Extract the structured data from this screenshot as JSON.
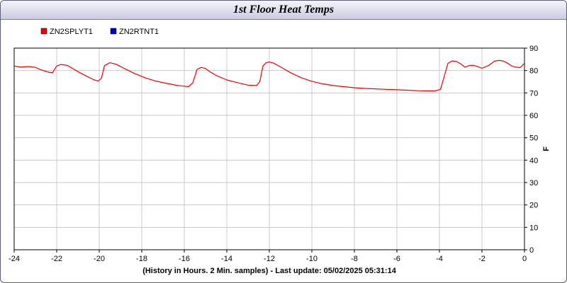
{
  "chart_data": {
    "type": "line",
    "title": "1st Floor Heat Temps",
    "xlabel": "(History in Hours. 2 Min. samples) - Last update: 05/02/2025 05:31:14",
    "ylabel": "F",
    "xlim": [
      -24,
      0
    ],
    "ylim": [
      0,
      90
    ],
    "x_ticks": [
      -24,
      -22,
      -20,
      -18,
      -16,
      -14,
      -12,
      -10,
      -8,
      -6,
      -4,
      -2,
      0
    ],
    "y_ticks": [
      0,
      10,
      20,
      30,
      40,
      50,
      60,
      70,
      80,
      90
    ],
    "grid": true,
    "legend_position": "top-left",
    "series": [
      {
        "name": "ZN2SPLYT1",
        "color": "#ee0000",
        "x": [
          -24,
          -23.7,
          -23.3,
          -23,
          -22.8,
          -22.4,
          -22.2,
          -22.0,
          -21.8,
          -21.5,
          -21,
          -20.5,
          -20.2,
          -20.05,
          -19.9,
          -19.75,
          -19.5,
          -19.2,
          -18.8,
          -18.3,
          -17.8,
          -17.3,
          -16.8,
          -16.3,
          -16.0,
          -15.8,
          -15.6,
          -15.4,
          -15.2,
          -15.0,
          -14.8,
          -14.5,
          -14.0,
          -13.5,
          -13.0,
          -12.6,
          -12.45,
          -12.3,
          -12.15,
          -12.0,
          -11.8,
          -11.5,
          -11.0,
          -10.5,
          -10.0,
          -9.5,
          -9.0,
          -8.5,
          -8.0,
          -7.5,
          -7.0,
          -6.5,
          -6.0,
          -5.5,
          -5.0,
          -4.5,
          -4.2,
          -3.95,
          -3.8,
          -3.6,
          -3.4,
          -3.2,
          -3.0,
          -2.8,
          -2.6,
          -2.4,
          -2.2,
          -2.0,
          -1.7,
          -1.4,
          -1.2,
          -1.0,
          -0.8,
          -0.6,
          -0.4,
          -0.2,
          0
        ],
        "values": [
          82,
          81.5,
          81.8,
          81.4,
          80.5,
          79.3,
          79,
          82,
          82.7,
          82.3,
          79.5,
          77,
          75.7,
          75.3,
          76.5,
          82.2,
          83.5,
          82.8,
          80.8,
          78.5,
          76.6,
          75.2,
          74.2,
          73.3,
          73,
          72.8,
          74.5,
          80.5,
          81.4,
          80.9,
          79.5,
          77.8,
          75.8,
          74.6,
          73.5,
          73.3,
          75,
          82,
          83.5,
          83.8,
          83.3,
          81.8,
          79,
          76.8,
          75.2,
          74.1,
          73.3,
          72.8,
          72.3,
          72,
          71.8,
          71.6,
          71.4,
          71.2,
          71,
          70.9,
          70.9,
          71.6,
          76.5,
          83.2,
          84.3,
          84,
          83,
          81.5,
          82.2,
          82.3,
          81.8,
          81,
          82.2,
          84.2,
          84.5,
          84.3,
          83.3,
          82,
          81.5,
          81.3,
          83.2
        ]
      },
      {
        "name": "ZN2RTNT1",
        "color": "#0000cc",
        "x": [],
        "values": []
      }
    ]
  }
}
